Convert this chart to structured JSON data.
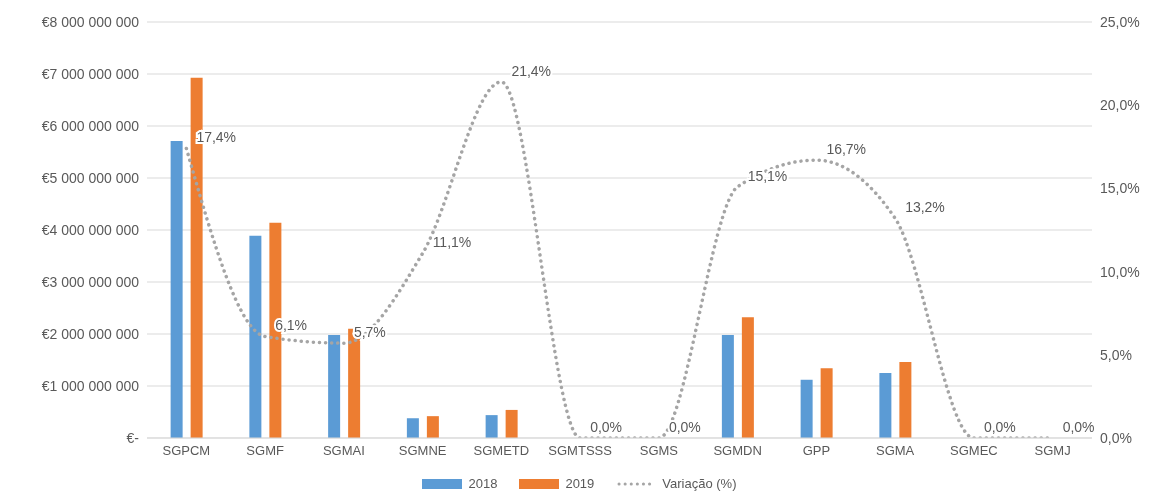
{
  "chart_data": {
    "type": "bar",
    "categories": [
      "SGPCM",
      "SGMF",
      "SGMAI",
      "SGMNE",
      "SGMETD",
      "SGMTSSS",
      "SGMS",
      "SGMDN",
      "GPP",
      "SGMA",
      "SGMEC",
      "SGMJ"
    ],
    "series": [
      {
        "name": "2018",
        "color": "#5b9bd5",
        "values": [
          5710000000,
          3890000000,
          1980000000,
          380000000,
          440000000,
          0,
          0,
          1980000000,
          1120000000,
          1250000000,
          0,
          0
        ]
      },
      {
        "name": "2019",
        "color": "#ed7d31",
        "values": [
          6930000000,
          4140000000,
          2100000000,
          420000000,
          540000000,
          0,
          0,
          2320000000,
          1340000000,
          1460000000,
          0,
          0
        ]
      },
      {
        "name": "Variação (%)",
        "type": "line",
        "axis": "y2",
        "color": "#a5a5a5",
        "line_style": "dotted",
        "marker": "none",
        "values": [
          17.4,
          6.1,
          5.7,
          11.1,
          21.4,
          0,
          0,
          15.1,
          16.7,
          13.2,
          0,
          0
        ],
        "value_labels": [
          "17,4%",
          "6,1%",
          "5,7%",
          "11,1%",
          "21,4%",
          "0,0%",
          "0,0%",
          "15,1%",
          "16,7%",
          "13,2%",
          "0,0%",
          "0,0%"
        ]
      }
    ],
    "ylim": [
      0,
      8000000000
    ],
    "yticks": [
      {
        "value": 0,
        "label": "€-"
      },
      {
        "value": 1000000000,
        "label": "€1 000 000 000"
      },
      {
        "value": 2000000000,
        "label": "€2 000 000 000"
      },
      {
        "value": 3000000000,
        "label": "€3 000 000 000"
      },
      {
        "value": 4000000000,
        "label": "€4 000 000 000"
      },
      {
        "value": 5000000000,
        "label": "€5 000 000 000"
      },
      {
        "value": 6000000000,
        "label": "€6 000 000 000"
      },
      {
        "value": 7000000000,
        "label": "€7 000 000 000"
      },
      {
        "value": 8000000000,
        "label": "€8 000 000 000"
      }
    ],
    "y2lim": [
      0,
      25
    ],
    "y2ticks": [
      {
        "value": 0,
        "label": "0,0%"
      },
      {
        "value": 5,
        "label": "5,0%"
      },
      {
        "value": 10,
        "label": "10,0%"
      },
      {
        "value": 15,
        "label": "15,0%"
      },
      {
        "value": 20,
        "label": "20,0%"
      },
      {
        "value": 25,
        "label": "25,0%"
      }
    ],
    "grid": "y",
    "legend": "bottom"
  }
}
